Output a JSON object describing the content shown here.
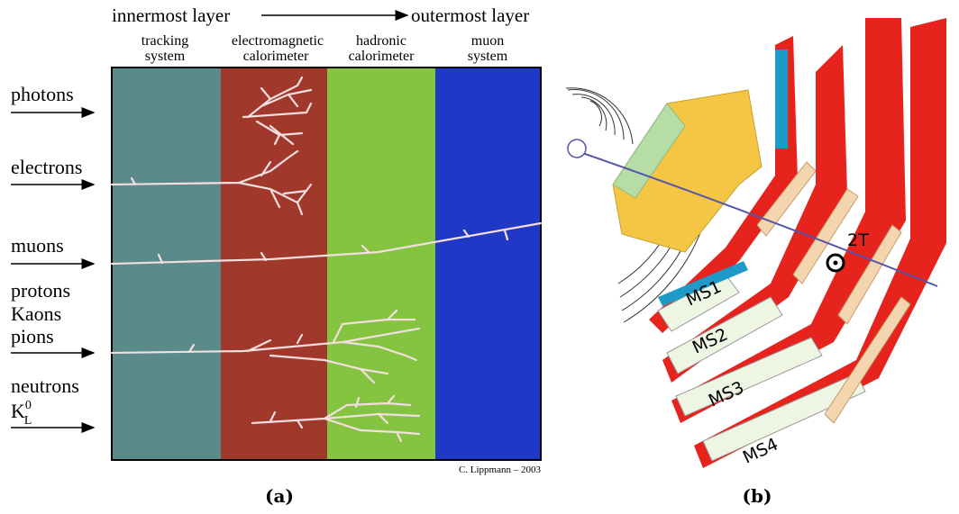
{
  "panel_a": {
    "direction": {
      "from": "innermost layer",
      "to": "outermost layer"
    },
    "layers": [
      {
        "line1": "tracking",
        "line2": "system"
      },
      {
        "line1": "electromagnetic",
        "line2": "calorimeter"
      },
      {
        "line1": "hadronic",
        "line2": "calorimeter"
      },
      {
        "line1": "muon",
        "line2": "system"
      }
    ],
    "particles": [
      "photons",
      "electrons",
      "muons",
      "protons",
      "Kaons",
      "pions",
      "neutrons"
    ],
    "kaon_long": {
      "base": "K",
      "sub": "L",
      "sup": "0"
    },
    "credit": "C. Lippmann – 2003",
    "caption": "(a)"
  },
  "panel_b": {
    "chambers": [
      "MS1",
      "MS2",
      "MS3",
      "MS4"
    ],
    "field": "2T",
    "caption": "(b)"
  }
}
